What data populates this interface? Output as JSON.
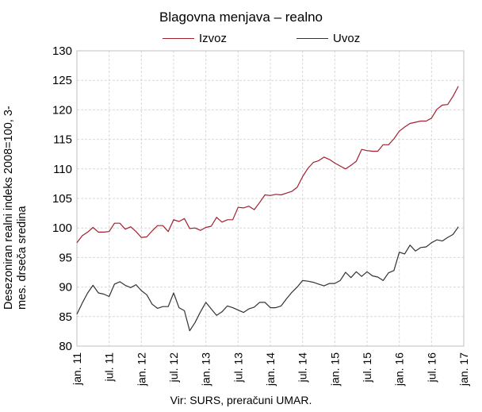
{
  "chart_data": {
    "type": "line",
    "title": "Blagovna menjava – realno",
    "ylabel": "Desezoniran realni indeks 2008=100, 3-mes. drseča sredina",
    "xlabel": "",
    "source": "Vir: SURS, preračuni UMAR.",
    "ylim": [
      80,
      130
    ],
    "yticks": [
      80,
      85,
      90,
      95,
      100,
      105,
      110,
      115,
      120,
      125,
      130
    ],
    "grid": true,
    "legend_position": "top",
    "x_tick_labels": [
      "jan. 11",
      "jul. 11",
      "jan. 12",
      "jul. 12",
      "jan. 13",
      "jul. 13",
      "jan. 14",
      "jul. 14",
      "jan. 15",
      "jul. 15",
      "jan. 16",
      "jul. 16",
      "jan. 17"
    ],
    "x_tick_index": [
      0,
      6,
      12,
      18,
      24,
      30,
      36,
      42,
      48,
      54,
      60,
      66,
      72
    ],
    "x": [
      "2011-01",
      "2011-02",
      "2011-03",
      "2011-04",
      "2011-05",
      "2011-06",
      "2011-07",
      "2011-08",
      "2011-09",
      "2011-10",
      "2011-11",
      "2011-12",
      "2012-01",
      "2012-02",
      "2012-03",
      "2012-04",
      "2012-05",
      "2012-06",
      "2012-07",
      "2012-08",
      "2012-09",
      "2012-10",
      "2012-11",
      "2012-12",
      "2013-01",
      "2013-02",
      "2013-03",
      "2013-04",
      "2013-05",
      "2013-06",
      "2013-07",
      "2013-08",
      "2013-09",
      "2013-10",
      "2013-11",
      "2013-12",
      "2014-01",
      "2014-02",
      "2014-03",
      "2014-04",
      "2014-05",
      "2014-06",
      "2014-07",
      "2014-08",
      "2014-09",
      "2014-10",
      "2014-11",
      "2014-12",
      "2015-01",
      "2015-02",
      "2015-03",
      "2015-04",
      "2015-05",
      "2015-06",
      "2015-07",
      "2015-08",
      "2015-09",
      "2015-10",
      "2015-11",
      "2015-12",
      "2016-01",
      "2016-02",
      "2016-03",
      "2016-04",
      "2016-05",
      "2016-06",
      "2016-07",
      "2016-08",
      "2016-09",
      "2016-10",
      "2016-11",
      "2016-12"
    ],
    "series": [
      {
        "name": "Izvoz",
        "color": "#a3202e",
        "values": [
          97.5,
          98.7,
          99.3,
          100.1,
          99.3,
          99.3,
          99.4,
          100.8,
          100.8,
          99.8,
          100.2,
          99.4,
          98.4,
          98.5,
          99.5,
          100.4,
          100.4,
          99.4,
          101.4,
          101.1,
          101.6,
          99.9,
          100.0,
          99.6,
          100.1,
          100.3,
          101.8,
          101.0,
          101.4,
          101.4,
          103.5,
          103.4,
          103.7,
          103.1,
          104.3,
          105.6,
          105.5,
          105.7,
          105.6,
          105.9,
          106.2,
          106.9,
          108.7,
          110.1,
          111.1,
          111.4,
          112.0,
          111.6,
          111.0,
          110.5,
          110.0,
          110.6,
          111.3,
          113.3,
          113.1,
          113.0,
          113.0,
          114.1,
          114.1,
          115.1,
          116.4,
          117.1,
          117.7,
          117.9,
          118.1,
          118.1,
          118.6,
          120.1,
          120.8,
          120.9,
          122.3,
          124.0
        ]
      },
      {
        "name": "Uvoz",
        "color": "#333333",
        "values": [
          85.4,
          87.3,
          89.0,
          90.3,
          89.0,
          88.8,
          88.4,
          90.5,
          90.9,
          90.3,
          89.9,
          90.4,
          89.4,
          88.7,
          87.1,
          86.4,
          86.7,
          86.7,
          89.0,
          86.5,
          86.0,
          82.6,
          84.0,
          85.8,
          87.4,
          86.3,
          85.2,
          85.8,
          86.8,
          86.5,
          86.1,
          85.7,
          86.3,
          86.6,
          87.4,
          87.4,
          86.5,
          86.5,
          86.8,
          88.0,
          89.1,
          90.0,
          91.1,
          91.0,
          90.8,
          90.5,
          90.2,
          90.6,
          90.6,
          91.1,
          92.5,
          91.6,
          92.6,
          91.8,
          92.6,
          91.9,
          91.7,
          91.1,
          92.4,
          92.8,
          95.9,
          95.6,
          97.1,
          96.1,
          96.7,
          96.8,
          97.5,
          98.0,
          97.8,
          98.4,
          98.9,
          100.2
        ]
      }
    ]
  }
}
